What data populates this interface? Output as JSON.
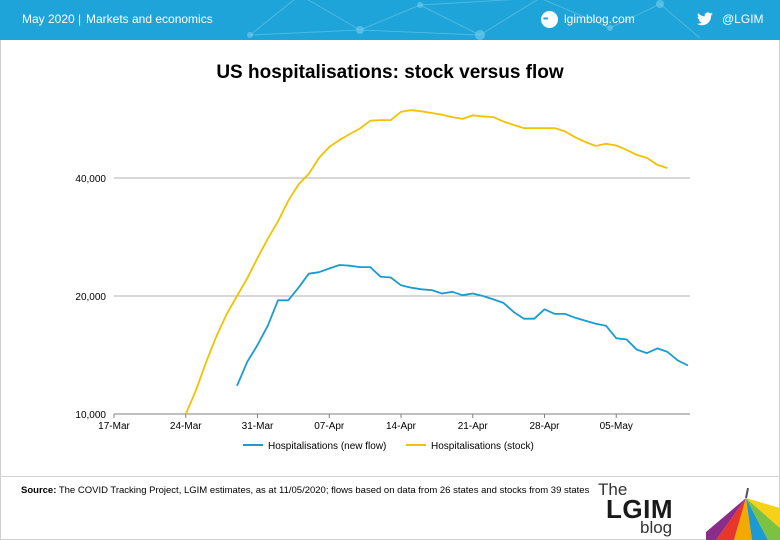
{
  "header": {
    "date": "May 2020",
    "separator": "|",
    "section": "Markets and economics",
    "site": "lgimblog.com",
    "handle": "@LGIM",
    "site_icon": "globe-www-icon",
    "handle_icon": "twitter-bird-icon",
    "background_color": "#1ea4d8"
  },
  "footer": {
    "source_label": "Source:",
    "source_text": " The COVID Tracking Project, LGIM estimates, as at 11/05/2020; flows based on data from 26 states and stocks from 39 states",
    "logo_the": "The",
    "logo_lgim": "LGIM",
    "logo_blog": "blog"
  },
  "chart_data": {
    "type": "line",
    "title": "US hospitalisations: stock versus flow",
    "xlabel": "",
    "ylabel": "",
    "x_tick_labels": [
      "17-Mar",
      "24-Mar",
      "31-Mar",
      "07-Apr",
      "14-Apr",
      "21-Apr",
      "28-Apr",
      "05-May"
    ],
    "y_tick_labels": [
      "10,000",
      "20,000",
      "40,000"
    ],
    "y_scale": "log",
    "ylim": [
      10000,
      70000
    ],
    "grid": "horizontal",
    "legend_position": "bottom",
    "legend": [
      "Hospitalisations (new flow)",
      "Hospitalisations (stock)"
    ],
    "series": [
      {
        "name": "Hospitalisations (new flow)",
        "color": "#1b9bd1",
        "start_date": "2020-03-29",
        "values": [
          11800,
          13600,
          15000,
          16800,
          19500,
          19500,
          21000,
          22800,
          23000,
          23500,
          24000,
          23900,
          23700,
          23700,
          22400,
          22300,
          21300,
          21000,
          20800,
          20700,
          20300,
          20500,
          20100,
          20300,
          20000,
          19600,
          19200,
          18200,
          17500,
          17500,
          18500,
          18000,
          18000,
          17600,
          17300,
          17000,
          16800,
          15600,
          15500,
          14600,
          14300,
          14700,
          14400,
          13700,
          13300
        ]
      },
      {
        "name": "Hospitalisations (stock)",
        "color": "#f2c200",
        "start_date": "2020-03-24",
        "values": [
          10000,
          11500,
          13600,
          15800,
          18000,
          20000,
          22200,
          25000,
          28000,
          31000,
          35000,
          38500,
          41000,
          45000,
          48000,
          50000,
          51800,
          53500,
          56000,
          56200,
          56200,
          59000,
          59600,
          59200,
          58600,
          58000,
          57200,
          56600,
          57800,
          57400,
          57200,
          55700,
          54600,
          53600,
          53600,
          53600,
          53600,
          52600,
          50800,
          49400,
          48300,
          48900,
          48400,
          47200,
          45800,
          45000,
          43200,
          42400
        ]
      }
    ]
  }
}
